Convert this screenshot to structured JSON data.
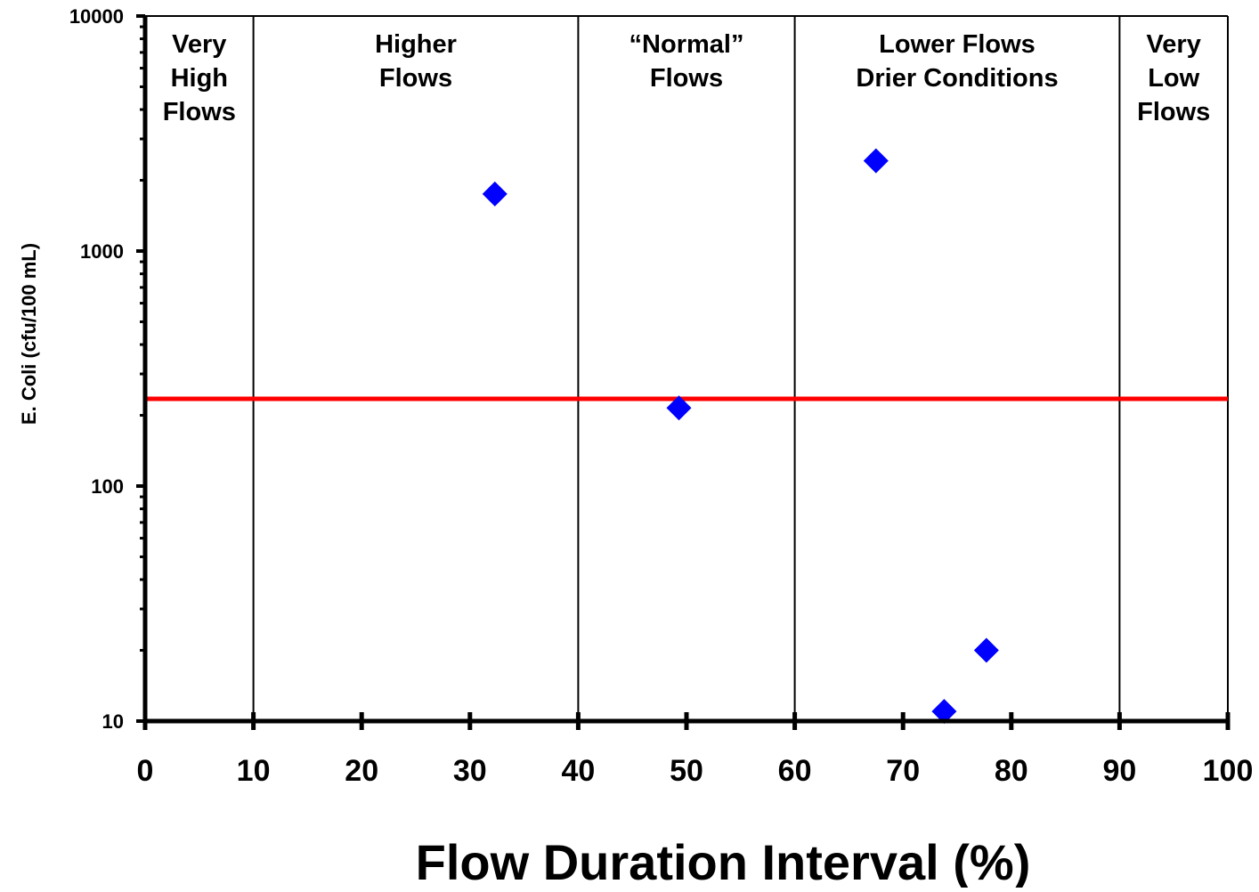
{
  "chart_data": {
    "type": "scatter",
    "title": "",
    "xlabel": "Flow Duration Interval (%)",
    "ylabel": "E. Coli (cfu/100 mL)",
    "xlim": [
      0,
      100
    ],
    "ylim": [
      10,
      10000
    ],
    "y_scale": "log",
    "x_ticks": [
      0,
      10,
      20,
      30,
      40,
      50,
      60,
      70,
      80,
      90,
      100
    ],
    "x_tick_labels": [
      "0",
      "10",
      "20",
      "30",
      "40",
      "50",
      "60",
      "70",
      "80",
      "90",
      "100"
    ],
    "y_ticks": [
      10,
      100,
      1000,
      10000
    ],
    "y_tick_labels": [
      "10",
      "100",
      "1000",
      "10000"
    ],
    "grid": false,
    "zone_boundaries": [
      10,
      40,
      60,
      90
    ],
    "zones": [
      {
        "lines": [
          "Very",
          "High",
          "Flows"
        ],
        "x_start": 0,
        "x_end": 10
      },
      {
        "lines": [
          "Higher",
          "Flows"
        ],
        "x_start": 10,
        "x_end": 40
      },
      {
        "lines": [
          "“Normal”",
          "Flows"
        ],
        "x_start": 40,
        "x_end": 60
      },
      {
        "lines": [
          "Lower Flows",
          "Drier Conditions"
        ],
        "x_start": 60,
        "x_end": 90
      },
      {
        "lines": [
          "Very",
          "Low",
          "Flows"
        ],
        "x_start": 90,
        "x_end": 100
      }
    ],
    "reference_line": {
      "y": 235,
      "color": "#ff0000"
    },
    "marker": {
      "shape": "diamond",
      "color": "#0000ff"
    },
    "series": [
      {
        "points": [
          {
            "x": 32.3,
            "y": 1750
          },
          {
            "x": 49.3,
            "y": 215
          },
          {
            "x": 67.5,
            "y": 2420
          },
          {
            "x": 73.8,
            "y": 11
          },
          {
            "x": 77.7,
            "y": 20
          }
        ]
      }
    ]
  }
}
